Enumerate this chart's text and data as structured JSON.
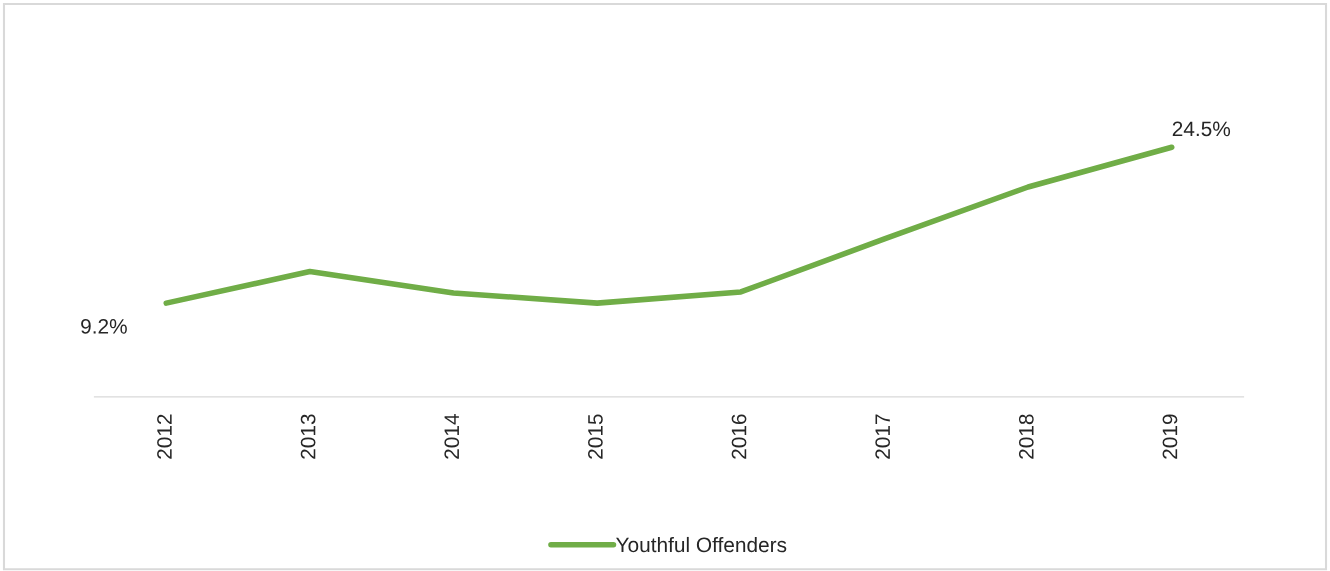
{
  "chart_data": {
    "type": "line",
    "categories": [
      "2012",
      "2013",
      "2014",
      "2015",
      "2016",
      "2017",
      "2018",
      "2019"
    ],
    "series": [
      {
        "name": "Youthful Offenders",
        "color": "#70ad47",
        "values": [
          9.2,
          12.3,
          10.2,
          9.2,
          10.3,
          15.5,
          20.6,
          24.5
        ],
        "value_labels": [
          "9.2%",
          null,
          null,
          null,
          null,
          null,
          null,
          "24.5%"
        ]
      }
    ],
    "tick_labels": "x",
    "grid": false,
    "legend": "bottom",
    "marker": "none",
    "line_style": "solid"
  }
}
